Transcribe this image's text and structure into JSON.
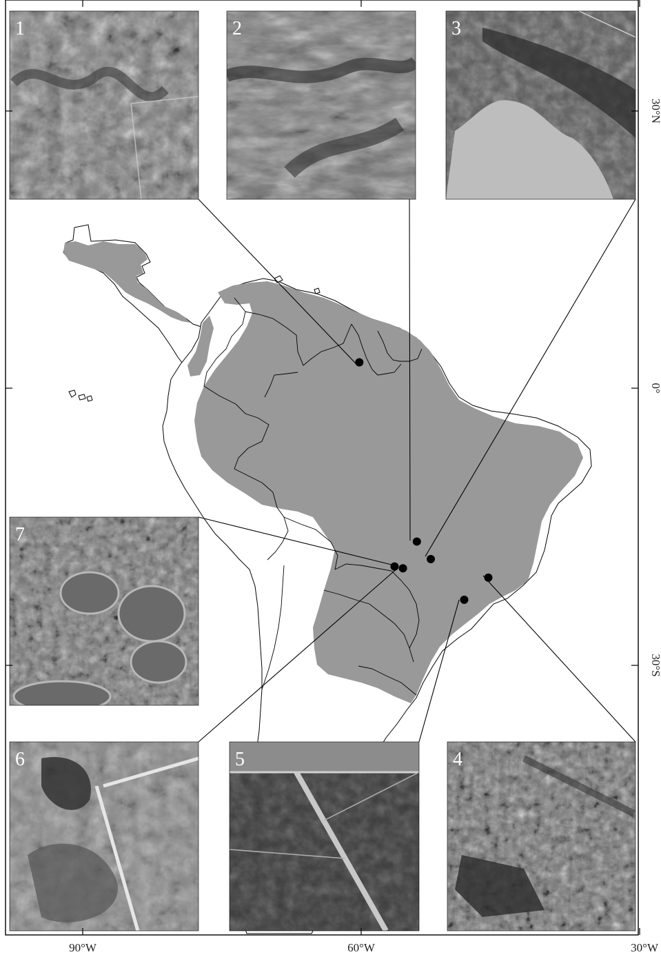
{
  "axes": {
    "x_ticks": [
      {
        "value": -90,
        "label": "90°W"
      },
      {
        "value": -60,
        "label": "60°W"
      },
      {
        "value": -30,
        "label": "30°W"
      }
    ],
    "y_ticks": [
      {
        "value": 30,
        "label": "30°N"
      },
      {
        "value": 0,
        "label": "0°"
      },
      {
        "value": -30,
        "label": "30°S"
      }
    ]
  },
  "colors": {
    "savanna_fill": "#999999",
    "land_fill": "#ffffff",
    "outline": "#000000"
  },
  "sites": [
    {
      "id": "1",
      "lon": -60.2,
      "lat": 2.8
    },
    {
      "id": "2",
      "lon": -54.0,
      "lat": -16.6
    },
    {
      "id": "3",
      "lon": -52.5,
      "lat": -18.5
    },
    {
      "id": "4",
      "lon": -46.3,
      "lat": -20.5
    },
    {
      "id": "5",
      "lon": -48.9,
      "lat": -22.9
    },
    {
      "id": "6",
      "lon": -55.5,
      "lat": -19.5
    },
    {
      "id": "7",
      "lon": -56.4,
      "lat": -19.3
    }
  ],
  "insets": [
    {
      "label": "1",
      "texture": "savanna-woodland"
    },
    {
      "label": "2",
      "texture": "savanna-gallery"
    },
    {
      "label": "3",
      "texture": "savanna-grassland"
    },
    {
      "label": "4",
      "texture": "savanna-rocky"
    },
    {
      "label": "5",
      "texture": "plantation-blocks"
    },
    {
      "label": "6",
      "texture": "wetland-river"
    },
    {
      "label": "7",
      "texture": "wetland-ponds"
    }
  ]
}
